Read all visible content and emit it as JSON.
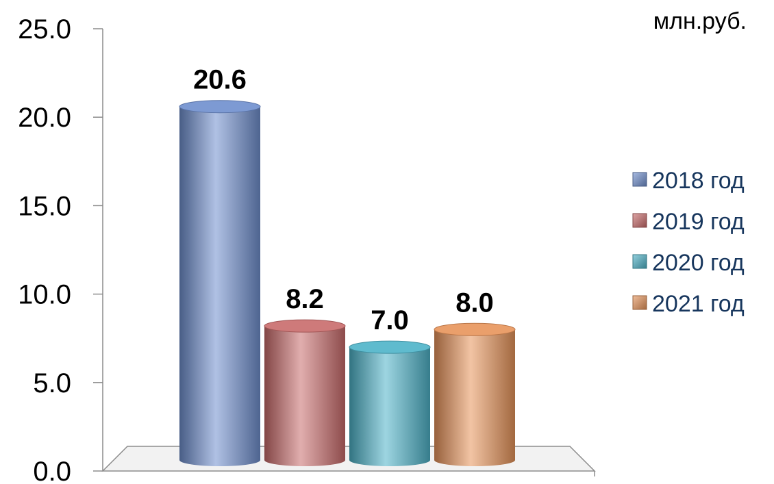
{
  "chart_data": {
    "type": "bar",
    "title": "",
    "unit": "млн.руб.",
    "xlabel": "",
    "ylabel": "",
    "ylim": [
      0,
      25
    ],
    "yticks": [
      "0.0",
      "5.0",
      "10.0",
      "15.0",
      "20.0",
      "25.0"
    ],
    "grid": false,
    "legend_position": "right",
    "series": [
      {
        "name": "2018 год",
        "value": 20.6,
        "label": "20.6",
        "color": "#6f8fce"
      },
      {
        "name": "2019 год",
        "value": 8.2,
        "label": "8.2",
        "color": "#c96b6b"
      },
      {
        "name": "2020 год",
        "value": 7.0,
        "label": "7.0",
        "color": "#4db3c8"
      },
      {
        "name": "2021 год",
        "value": 8.0,
        "label": "8.0",
        "color": "#e8945a"
      }
    ]
  }
}
